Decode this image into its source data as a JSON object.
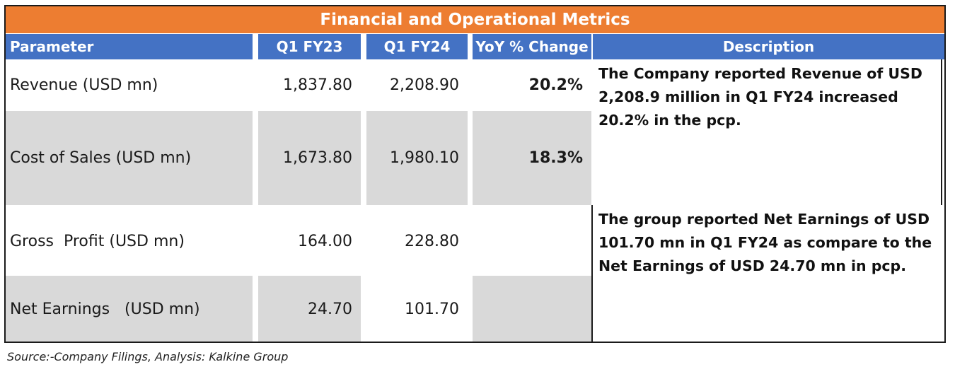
{
  "table": {
    "title": "Financial and Operational Metrics",
    "headers": {
      "parameter": "Parameter",
      "q1fy23": "Q1 FY23",
      "q1fy24": "Q1 FY24",
      "yoy": "YoY % Change",
      "description": "Description"
    },
    "rows": [
      {
        "parameter": "Revenue (USD mn)",
        "q1fy23": "1,837.80",
        "q1fy24": "2,208.90",
        "yoy": "20.2%"
      },
      {
        "parameter": "Cost of Sales (USD mn)",
        "q1fy23": "1,673.80",
        "q1fy24": "1,980.10",
        "yoy": "18.3%"
      },
      {
        "parameter": "Gross  Profit (USD mn)",
        "q1fy23": "164.00",
        "q1fy24": "228.80",
        "yoy": ""
      },
      {
        "parameter": "Net Earnings   (USD mn)",
        "q1fy23": "24.70",
        "q1fy24": "101.70",
        "yoy": ""
      }
    ],
    "descriptions": [
      "The Company reported Revenue of USD 2,208.9 million in Q1 FY24 increased 20.2% in the pcp.",
      "The group reported Net Earnings of USD 101.70 mn in Q1 FY24 as compare to the Net Earnings of USD 24.70  mn in pcp."
    ]
  },
  "source": "Source:-Company Filings, Analysis: Kalkine Group"
}
